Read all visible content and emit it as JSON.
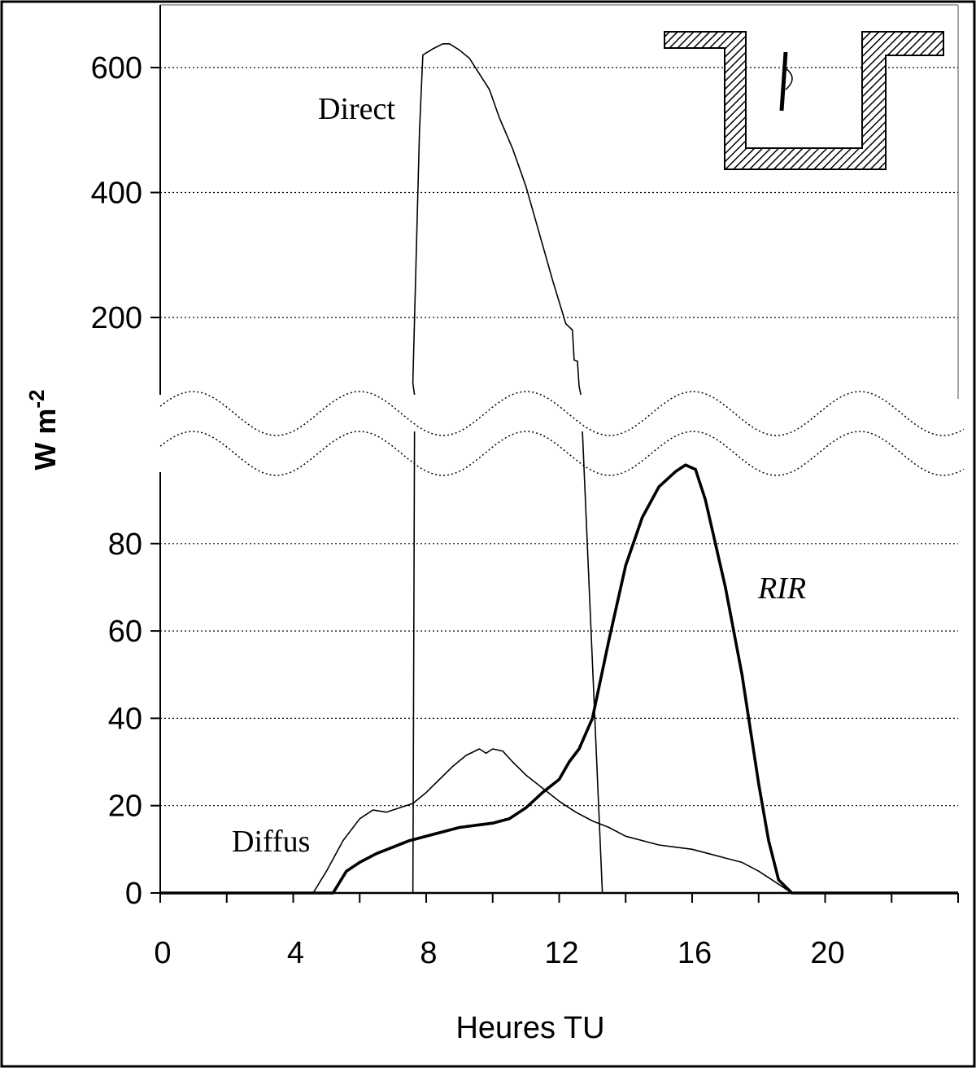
{
  "chart_data": {
    "type": "line",
    "xlabel": "Heures TU",
    "ylabel": "W m",
    "ylabel_sup": "-2",
    "xlim": [
      0,
      24
    ],
    "ylim_lower": [
      0,
      100
    ],
    "ylim_upper": [
      90,
      680
    ],
    "x_ticks": [
      "0",
      "4",
      "8",
      "12",
      "16",
      "20"
    ],
    "y_ticks_lower": [
      "0",
      "20",
      "40",
      "60",
      "80"
    ],
    "y_ticks_upper": [
      "200",
      "400",
      "600"
    ],
    "grid": true,
    "broken_axis": true,
    "series": [
      {
        "name": "Direct",
        "style": "thin",
        "x": [
          7.6,
          7.6,
          7.8,
          7.9,
          8.2,
          8.5,
          8.7,
          9.0,
          9.3,
          9.6,
          9.9,
          10.2,
          10.6,
          11.0,
          11.4,
          11.8,
          12.2,
          12.4,
          12.45,
          12.55,
          12.6,
          12.65,
          12.8,
          13.0,
          13.2,
          13.3
        ],
        "y": [
          0,
          95,
          500,
          620,
          630,
          638,
          638,
          628,
          615,
          590,
          565,
          520,
          470,
          410,
          335,
          260,
          190,
          180,
          132,
          130,
          90,
          80,
          60,
          40,
          15,
          0
        ]
      },
      {
        "name": "Diffus",
        "style": "thin",
        "x": [
          0,
          4.6,
          5.0,
          5.5,
          6.0,
          6.4,
          6.8,
          7.2,
          7.6,
          8.0,
          8.4,
          8.8,
          9.2,
          9.6,
          9.8,
          10.0,
          10.3,
          10.6,
          11.0,
          11.5,
          12.0,
          12.5,
          13.0,
          13.5,
          14.0,
          14.5,
          15.0,
          15.5,
          16.0,
          16.5,
          17.0,
          17.5,
          18.0,
          18.5,
          19.0,
          24
        ],
        "y": [
          0,
          0,
          5,
          12,
          17,
          19,
          18.5,
          19.5,
          20.5,
          23,
          26,
          29,
          31.5,
          33,
          32,
          33,
          32.5,
          30,
          27,
          24,
          21,
          18.5,
          16.5,
          15,
          13,
          12,
          11,
          10.5,
          10,
          9,
          8,
          7,
          5,
          2.5,
          0,
          0
        ]
      },
      {
        "name": "RIR",
        "style": "thick",
        "x": [
          0,
          5.2,
          5.6,
          6.0,
          6.5,
          7.0,
          7.5,
          8.0,
          8.5,
          9.0,
          9.5,
          10.0,
          10.5,
          11.0,
          11.5,
          12.0,
          12.3,
          12.6,
          13.0,
          13.5,
          14.0,
          14.5,
          15.0,
          15.5,
          15.8,
          16.1,
          16.4,
          16.7,
          17.0,
          17.5,
          18.0,
          18.3,
          18.6,
          19.0,
          24
        ],
        "y": [
          0,
          0,
          5,
          7,
          9,
          10.5,
          12,
          13,
          14,
          15,
          15.5,
          16,
          17,
          19.5,
          23,
          26,
          30,
          33,
          40,
          58,
          75,
          86,
          93,
          96.5,
          98,
          97,
          90,
          80,
          70,
          50,
          25,
          12,
          3,
          0,
          0
        ]
      }
    ],
    "annotations": {
      "direct_label": "Direct",
      "diffus_label": "Diffus",
      "rir_label": "RIR"
    }
  }
}
